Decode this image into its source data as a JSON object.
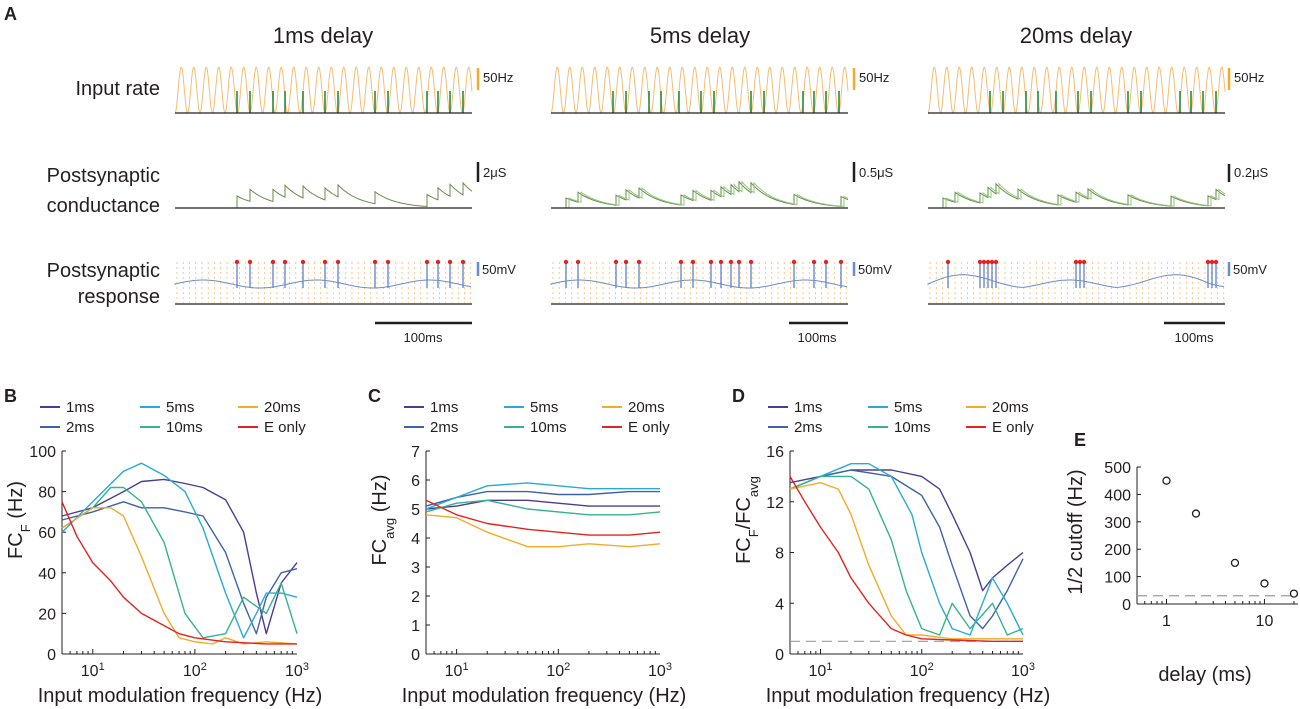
{
  "colors": {
    "d1": "#4b3d94",
    "d2": "#3f63a6",
    "d5": "#2ba9d6",
    "d10": "#35b38e",
    "d20": "#f2ab2a",
    "eonly": "#e3231f",
    "input_rate": "#f5bd72",
    "input_spikes": "#2b8a3e",
    "conductance_a": "#6b8a4a",
    "conductance_b": "#8cc97b",
    "response": "#6a8ccc",
    "spike_marker": "#e3231f",
    "axis": "#231f20"
  },
  "panel_a": {
    "letter": "A",
    "columns": [
      {
        "title": "1ms delay",
        "rate_scale": "50Hz",
        "cond_scale": "2μS",
        "resp_scale": "50mV",
        "time_scale": "100ms"
      },
      {
        "title": "5ms delay",
        "rate_scale": "50Hz",
        "cond_scale": "0.5μS",
        "resp_scale": "50mV",
        "time_scale": "100ms"
      },
      {
        "title": "20ms delay",
        "rate_scale": "50Hz",
        "cond_scale": "0.2μS",
        "resp_scale": "50mV",
        "time_scale": "100ms"
      }
    ],
    "rows": {
      "input_rate": "Input rate",
      "cond_line1": "Postsynaptic",
      "cond_line2": "conductance",
      "resp_line1": "Postsynaptic",
      "resp_line2": "response"
    }
  },
  "legend": {
    "entries": [
      {
        "key": "d1",
        "label": "1ms"
      },
      {
        "key": "d5",
        "label": "5ms"
      },
      {
        "key": "d20",
        "label": "20ms"
      },
      {
        "key": "d2",
        "label": "2ms"
      },
      {
        "key": "d10",
        "label": "10ms"
      },
      {
        "key": "eonly",
        "label": "E only"
      }
    ]
  },
  "chart_data": [
    {
      "panel": "B",
      "type": "line",
      "xlabel": "Input modulation frequency (Hz)",
      "ylabel": "FC",
      "ylabel_sub": "F",
      "ylabel_unit": " (Hz)",
      "xscale": "log",
      "xlim": [
        5,
        1000
      ],
      "ylim": [
        0,
        100
      ],
      "yticks": [
        0,
        20,
        40,
        60,
        80,
        100
      ],
      "xticks": [
        10,
        100,
        1000
      ],
      "xtick_labels": [
        "10",
        "10",
        "10"
      ],
      "xtick_exps": [
        "1",
        "2",
        "3"
      ],
      "series": [
        {
          "key": "d1",
          "name": "1ms",
          "x": [
            5,
            10,
            20,
            30,
            50,
            80,
            120,
            200,
            300,
            400,
            500,
            700,
            1000
          ],
          "y": [
            68,
            72,
            80,
            85,
            86,
            84,
            82,
            76,
            60,
            30,
            10,
            35,
            45
          ]
        },
        {
          "key": "d2",
          "name": "2ms",
          "x": [
            5,
            10,
            20,
            30,
            50,
            80,
            120,
            200,
            300,
            400,
            500,
            700,
            1000
          ],
          "y": [
            66,
            70,
            75,
            72,
            72,
            70,
            68,
            50,
            25,
            10,
            28,
            40,
            42
          ]
        },
        {
          "key": "d5",
          "name": "5ms",
          "x": [
            5,
            10,
            20,
            30,
            50,
            80,
            120,
            200,
            300,
            400,
            500,
            700,
            1000
          ],
          "y": [
            60,
            75,
            90,
            94,
            88,
            80,
            62,
            30,
            8,
            20,
            30,
            30,
            28
          ]
        },
        {
          "key": "d10",
          "name": "10ms",
          "x": [
            5,
            10,
            15,
            20,
            30,
            50,
            80,
            120,
            200,
            300,
            500,
            700,
            1000
          ],
          "y": [
            62,
            72,
            82,
            82,
            75,
            55,
            20,
            8,
            10,
            28,
            20,
            35,
            10
          ]
        },
        {
          "key": "d20",
          "name": "20ms",
          "x": [
            5,
            10,
            15,
            20,
            30,
            50,
            70,
            100,
            150,
            200,
            300,
            500,
            1000
          ],
          "y": [
            62,
            72,
            72,
            68,
            48,
            20,
            8,
            6,
            5,
            8,
            5,
            6,
            5
          ]
        },
        {
          "key": "eonly",
          "name": "E only",
          "x": [
            5,
            7,
            10,
            15,
            20,
            30,
            50,
            70,
            100,
            200,
            500,
            1000
          ],
          "y": [
            75,
            58,
            45,
            36,
            28,
            20,
            14,
            10,
            8,
            6,
            5,
            5
          ]
        }
      ]
    },
    {
      "panel": "C",
      "type": "line",
      "xlabel": "Input modulation frequency (Hz)",
      "ylabel": "FC",
      "ylabel_sub": "avg",
      "ylabel_unit": " (Hz)",
      "xscale": "log",
      "xlim": [
        5,
        1000
      ],
      "ylim": [
        0,
        7
      ],
      "yticks": [
        0,
        1,
        2,
        3,
        4,
        5,
        6,
        7
      ],
      "xticks": [
        10,
        100,
        1000
      ],
      "xtick_labels": [
        "10",
        "10",
        "10"
      ],
      "xtick_exps": [
        "1",
        "2",
        "3"
      ],
      "series": [
        {
          "key": "d1",
          "name": "1ms",
          "x": [
            5,
            10,
            20,
            50,
            100,
            200,
            500,
            1000
          ],
          "y": [
            5.0,
            5.1,
            5.3,
            5.3,
            5.2,
            5.1,
            5.1,
            5.1
          ]
        },
        {
          "key": "d2",
          "name": "2ms",
          "x": [
            5,
            10,
            20,
            50,
            100,
            200,
            500,
            1000
          ],
          "y": [
            5.1,
            5.4,
            5.6,
            5.6,
            5.5,
            5.5,
            5.6,
            5.6
          ]
        },
        {
          "key": "d5",
          "name": "5ms",
          "x": [
            5,
            10,
            20,
            50,
            100,
            200,
            500,
            1000
          ],
          "y": [
            5.0,
            5.4,
            5.8,
            5.9,
            5.8,
            5.7,
            5.7,
            5.7
          ]
        },
        {
          "key": "d10",
          "name": "10ms",
          "x": [
            5,
            10,
            20,
            50,
            100,
            200,
            500,
            1000
          ],
          "y": [
            4.9,
            5.2,
            5.3,
            5.0,
            4.9,
            4.8,
            4.8,
            4.9
          ]
        },
        {
          "key": "d20",
          "name": "20ms",
          "x": [
            5,
            10,
            20,
            50,
            100,
            200,
            500,
            1000
          ],
          "y": [
            4.8,
            4.7,
            4.2,
            3.7,
            3.7,
            3.8,
            3.7,
            3.8
          ]
        },
        {
          "key": "eonly",
          "name": "E only",
          "x": [
            5,
            10,
            20,
            50,
            100,
            200,
            500,
            1000
          ],
          "y": [
            5.3,
            4.8,
            4.5,
            4.3,
            4.2,
            4.1,
            4.1,
            4.2
          ]
        }
      ]
    },
    {
      "panel": "D",
      "type": "line",
      "xlabel": "Input modulation frequency (Hz)",
      "ylabel": "FC",
      "ylabel_sub": "F",
      "ylabel_mid": "/FC",
      "ylabel_sub2": "avg",
      "xscale": "log",
      "xlim": [
        5,
        1000
      ],
      "ylim": [
        0,
        16
      ],
      "yticks": [
        0,
        4,
        8,
        12,
        16
      ],
      "xticks": [
        10,
        100,
        1000
      ],
      "xtick_labels": [
        "10",
        "10",
        "10"
      ],
      "xtick_exps": [
        "1",
        "2",
        "3"
      ],
      "reference_line": 1,
      "series": [
        {
          "key": "d1",
          "name": "1ms",
          "x": [
            5,
            10,
            20,
            50,
            100,
            150,
            200,
            300,
            400,
            500,
            700,
            1000
          ],
          "y": [
            13.5,
            14,
            14.5,
            14.5,
            14,
            13,
            11,
            8,
            5,
            6,
            7,
            8
          ]
        },
        {
          "key": "d2",
          "name": "2ms",
          "x": [
            5,
            10,
            20,
            50,
            100,
            150,
            200,
            300,
            400,
            500,
            700,
            1000
          ],
          "y": [
            13,
            14,
            14.5,
            14,
            12.5,
            10,
            7,
            3,
            2,
            3,
            5,
            7.5
          ]
        },
        {
          "key": "d5",
          "name": "5ms",
          "x": [
            5,
            10,
            20,
            30,
            50,
            80,
            100,
            150,
            200,
            300,
            500,
            700,
            1000
          ],
          "y": [
            13,
            14,
            15,
            15,
            14,
            11,
            8,
            4,
            2,
            1.5,
            6,
            4,
            1.5
          ]
        },
        {
          "key": "d10",
          "name": "10ms",
          "x": [
            5,
            10,
            20,
            30,
            50,
            70,
            100,
            150,
            200,
            300,
            500,
            700,
            1000
          ],
          "y": [
            13,
            14,
            14,
            13,
            9,
            5,
            2,
            1.5,
            4,
            2,
            4,
            1.5,
            2
          ]
        },
        {
          "key": "d20",
          "name": "20ms",
          "x": [
            5,
            10,
            15,
            20,
            30,
            50,
            70,
            100,
            200,
            500,
            1000
          ],
          "y": [
            13,
            13.5,
            13,
            11,
            7,
            3,
            1.5,
            1.5,
            1.2,
            1.2,
            1.2
          ]
        },
        {
          "key": "eonly",
          "name": "E only",
          "x": [
            5,
            7,
            10,
            15,
            20,
            30,
            50,
            70,
            100,
            200,
            500,
            1000
          ],
          "y": [
            14,
            12,
            10,
            8,
            6,
            4,
            2,
            1.5,
            1.2,
            1.1,
            1,
            1
          ]
        }
      ]
    },
    {
      "panel": "E",
      "type": "scatter",
      "xlabel": "delay (ms)",
      "ylabel": "1/2 cutoff (Hz)",
      "xscale": "log",
      "xlim": [
        0.5,
        22
      ],
      "ylim": [
        0,
        500
      ],
      "yticks": [
        0,
        100,
        200,
        300,
        400,
        500
      ],
      "xticks": [
        1,
        10
      ],
      "xtick_labels": [
        "1",
        "10"
      ],
      "reference_line": 30,
      "points": [
        {
          "x": 1,
          "y": 450
        },
        {
          "x": 2,
          "y": 330
        },
        {
          "x": 5,
          "y": 150
        },
        {
          "x": 10,
          "y": 75
        },
        {
          "x": 20,
          "y": 38
        }
      ]
    }
  ]
}
